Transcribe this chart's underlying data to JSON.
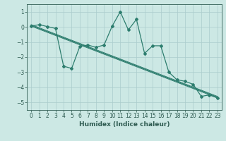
{
  "xlabel": "Humidex (Indice chaleur)",
  "xlim": [
    -0.5,
    23.5
  ],
  "ylim": [
    -5.5,
    1.5
  ],
  "yticks": [
    1,
    0,
    -1,
    -2,
    -3,
    -4,
    -5
  ],
  "xticks": [
    0,
    1,
    2,
    3,
    4,
    5,
    6,
    7,
    8,
    9,
    10,
    11,
    12,
    13,
    14,
    15,
    16,
    17,
    18,
    19,
    20,
    21,
    22,
    23
  ],
  "line1_x": [
    0,
    1,
    2,
    3,
    4,
    5,
    6,
    7,
    8,
    9,
    10,
    11,
    12,
    13,
    14,
    15,
    16,
    17,
    18,
    19,
    20,
    21,
    22,
    23
  ],
  "line1_y": [
    0.05,
    0.15,
    0.02,
    -0.1,
    -2.6,
    -2.75,
    -1.3,
    -1.2,
    -1.35,
    -1.2,
    0.05,
    1.0,
    -0.2,
    0.5,
    -1.75,
    -1.25,
    -1.25,
    -3.0,
    -3.5,
    -3.6,
    -3.8,
    -4.6,
    -4.5,
    -4.7
  ],
  "trend_x": [
    0,
    23
  ],
  "trend_y": [
    0.1,
    -4.65
  ],
  "color": "#2d7d6e",
  "bg_color": "#cce8e4",
  "grid_color": "#aacccc",
  "font_color": "#2d5a50",
  "tick_fontsize": 5.5,
  "xlabel_fontsize": 6.5
}
